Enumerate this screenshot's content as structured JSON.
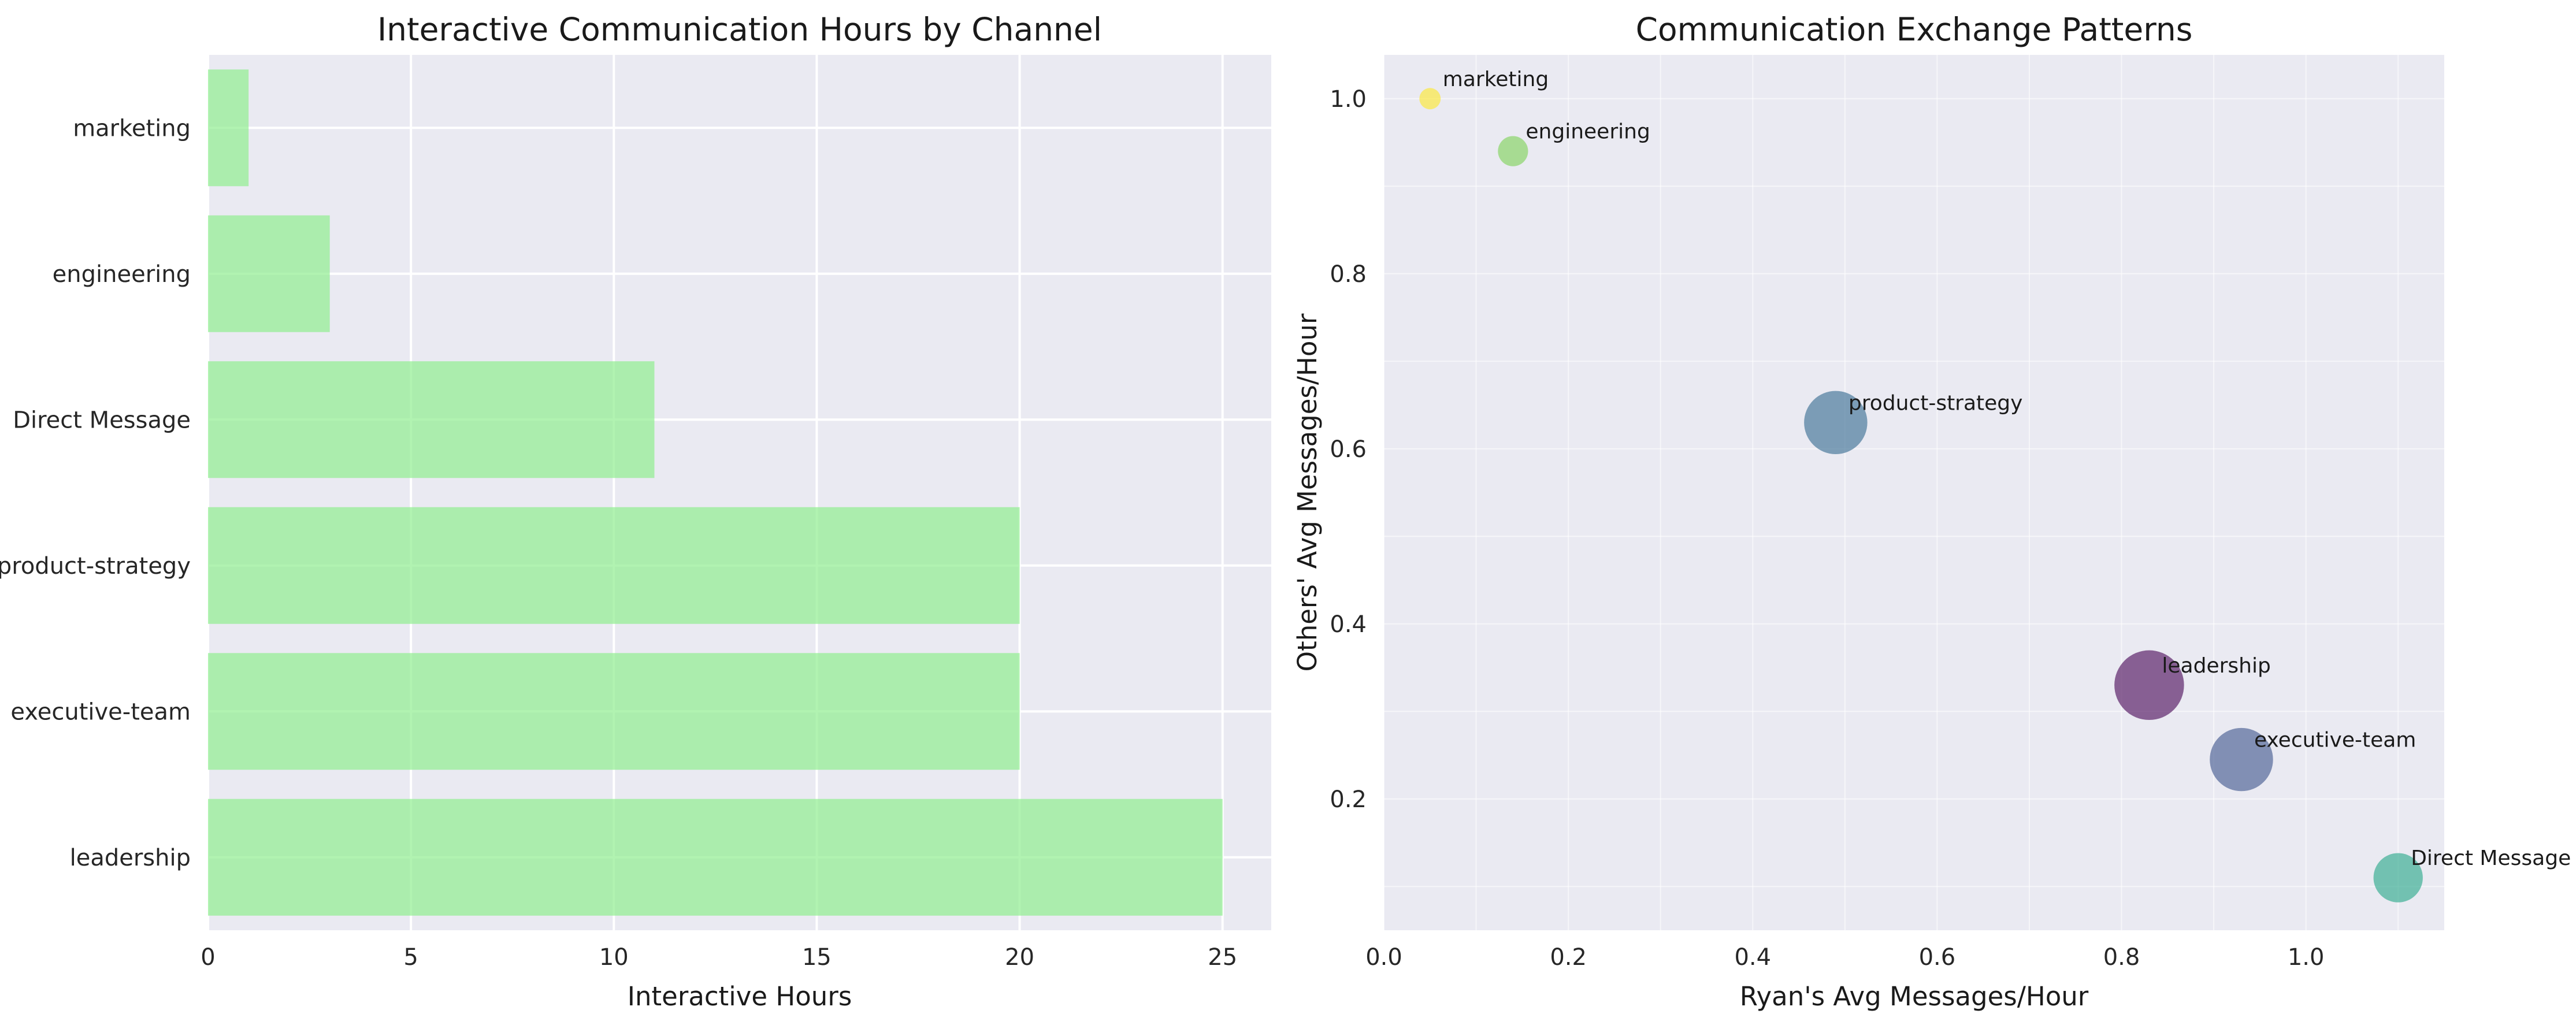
{
  "chart_data": [
    {
      "type": "bar",
      "orientation": "horizontal",
      "title": "Interactive Communication Hours by Channel",
      "xlabel": "Interactive Hours",
      "ylabel": "",
      "categories": [
        "marketing",
        "engineering",
        "Direct Message",
        "product-strategy",
        "executive-team",
        "leadership"
      ],
      "values": [
        1,
        3,
        11,
        20,
        20,
        25
      ],
      "xlim": [
        0,
        26.2
      ],
      "xticks": [
        0,
        5,
        10,
        15,
        20,
        25
      ],
      "bar_color": "#90ee90",
      "background": "#eaeaf2",
      "grid": true
    },
    {
      "type": "scatter",
      "title": "Communication Exchange Patterns",
      "xlabel": "Ryan's Avg Messages/Hour",
      "ylabel": "Others' Avg Messages/Hour",
      "xlim": [
        0,
        1.15
      ],
      "ylim": [
        0.05,
        1.05
      ],
      "xticks": [
        0.0,
        0.2,
        0.4,
        0.6,
        0.8,
        1.0
      ],
      "yticks": [
        0.2,
        0.4,
        0.6,
        0.8,
        1.0
      ],
      "background": "#eaeaf2",
      "grid": true,
      "points": [
        {
          "label": "marketing",
          "x": 0.05,
          "y": 1.0,
          "size": 1,
          "color": "#fde725"
        },
        {
          "label": "engineering",
          "x": 0.14,
          "y": 0.94,
          "size": 3,
          "color": "#7ad151"
        },
        {
          "label": "product-strategy",
          "x": 0.49,
          "y": 0.63,
          "size": 20,
          "color": "#31688e"
        },
        {
          "label": "leadership",
          "x": 0.83,
          "y": 0.33,
          "size": 25,
          "color": "#440154"
        },
        {
          "label": "executive-team",
          "x": 0.93,
          "y": 0.245,
          "size": 20,
          "color": "#3b528b"
        },
        {
          "label": "Direct Message",
          "x": 1.1,
          "y": 0.11,
          "size": 11,
          "color": "#21a585"
        }
      ]
    }
  ]
}
